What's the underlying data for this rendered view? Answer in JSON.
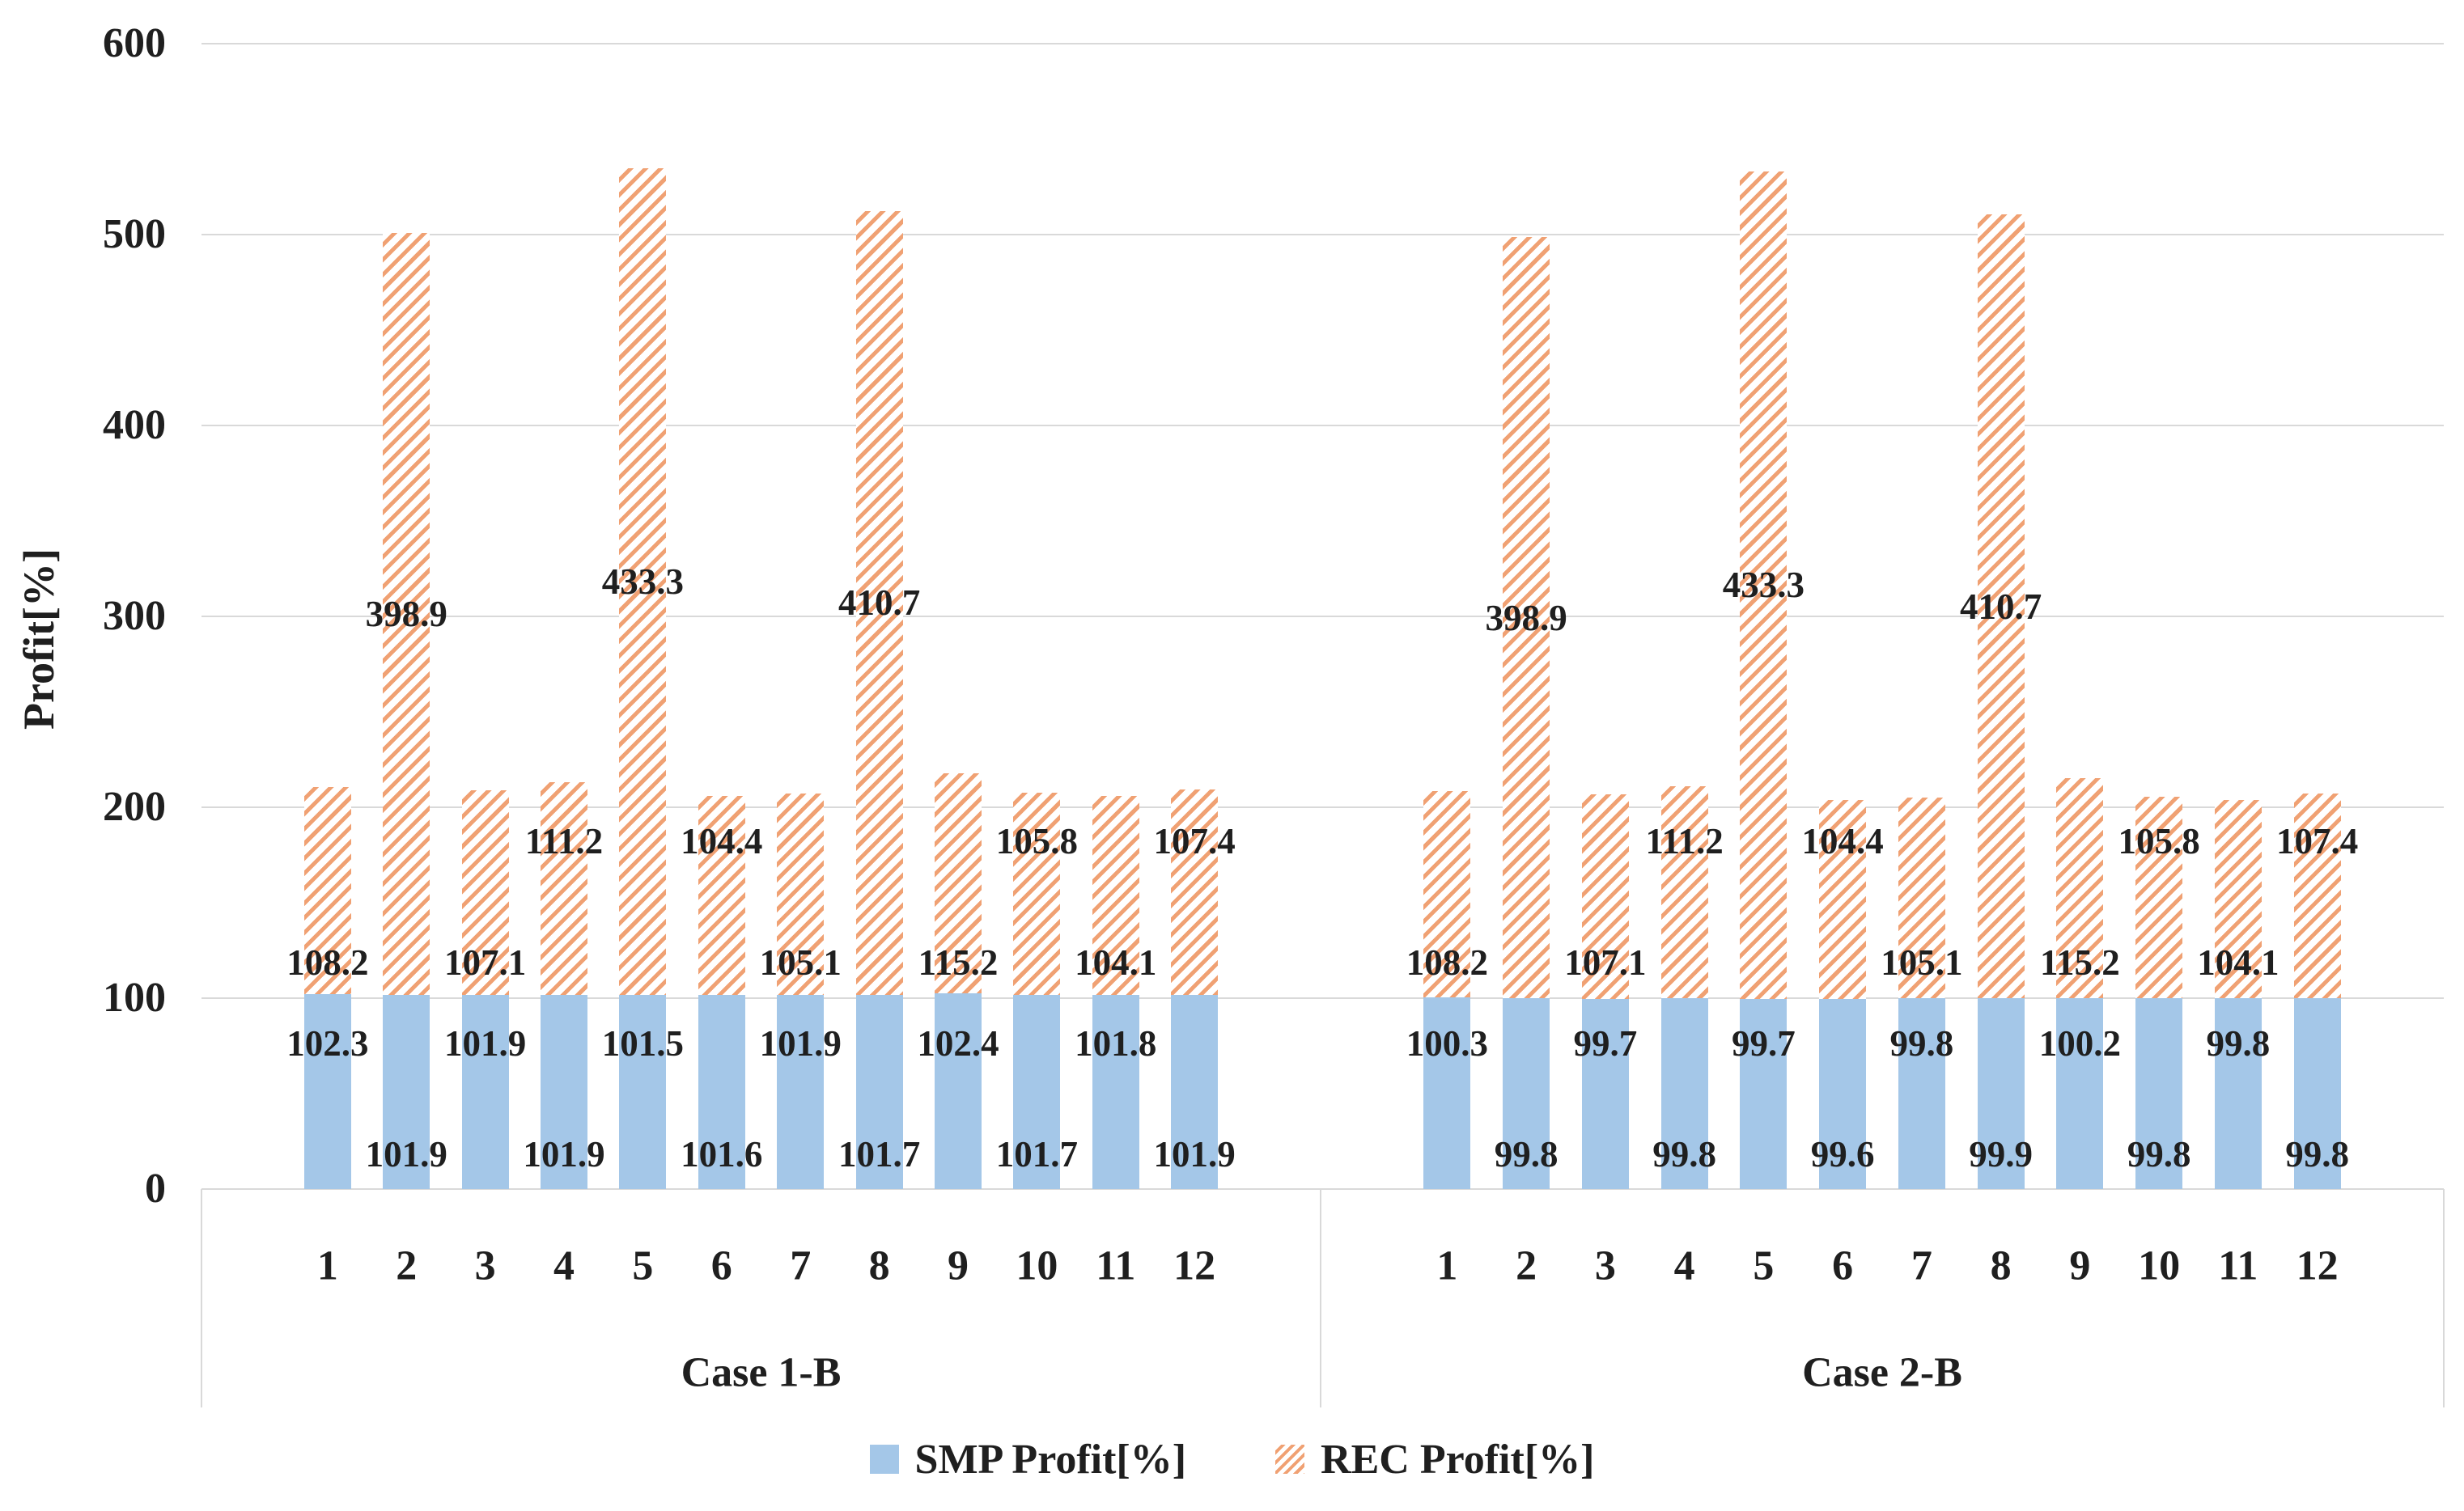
{
  "chart_data": {
    "type": "bar",
    "stacked": true,
    "title": "",
    "ylabel": "Profit[%]",
    "xlabel": "",
    "ylim": [
      0,
      600
    ],
    "yticks": [
      0,
      100,
      200,
      300,
      400,
      500,
      600
    ],
    "grid": true,
    "legend_position": "bottom-center",
    "colors": {
      "smp_fill": "#A4C7E8",
      "rec_stripe": "#F0A173",
      "gridline": "#D9D9D9",
      "text": "#1F1F1F"
    },
    "series": [
      {
        "name": "SMP Profit[%]",
        "key": "smp",
        "style": "solid-blue"
      },
      {
        "name": "REC Profit[%]",
        "key": "rec",
        "style": "orange-hatch"
      }
    ],
    "groups": [
      {
        "label": "Case 1-B",
        "categories": [
          "1",
          "2",
          "3",
          "4",
          "5",
          "6",
          "7",
          "8",
          "9",
          "10",
          "11",
          "12"
        ],
        "smp": [
          102.3,
          101.9,
          101.9,
          101.9,
          101.5,
          101.6,
          101.9,
          101.7,
          102.4,
          101.7,
          101.8,
          101.9
        ],
        "rec": [
          108.2,
          398.9,
          107.1,
          111.2,
          433.3,
          104.4,
          105.1,
          410.7,
          115.2,
          105.8,
          104.1,
          107.4
        ]
      },
      {
        "label": "Case 2-B",
        "categories": [
          "1",
          "2",
          "3",
          "4",
          "5",
          "6",
          "7",
          "8",
          "9",
          "10",
          "11",
          "12"
        ],
        "smp": [
          100.3,
          99.8,
          99.7,
          99.8,
          99.7,
          99.6,
          99.8,
          99.9,
          100.2,
          99.8,
          99.8,
          99.8
        ],
        "rec": [
          108.2,
          398.9,
          107.1,
          111.2,
          433.3,
          104.4,
          105.1,
          410.7,
          115.2,
          105.8,
          104.1,
          107.4
        ]
      }
    ]
  }
}
